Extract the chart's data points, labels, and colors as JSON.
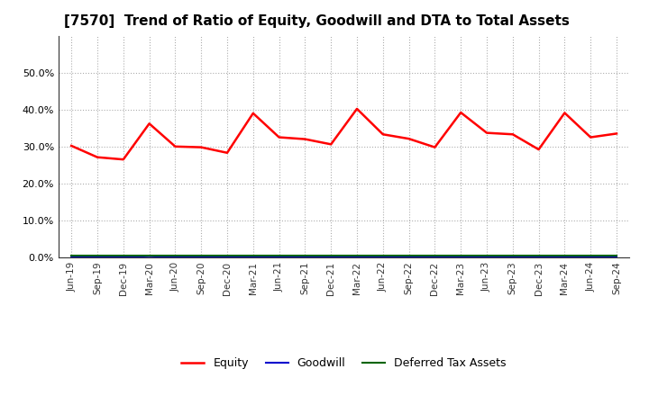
{
  "title": "[7570]  Trend of Ratio of Equity, Goodwill and DTA to Total Assets",
  "x_labels": [
    "Jun-19",
    "Sep-19",
    "Dec-19",
    "Mar-20",
    "Jun-20",
    "Sep-20",
    "Dec-20",
    "Mar-21",
    "Jun-21",
    "Sep-21",
    "Dec-21",
    "Mar-22",
    "Jun-22",
    "Sep-22",
    "Dec-22",
    "Mar-23",
    "Jun-23",
    "Sep-23",
    "Dec-23",
    "Mar-24",
    "Jun-24",
    "Sep-24"
  ],
  "equity": [
    0.302,
    0.271,
    0.265,
    0.362,
    0.3,
    0.298,
    0.283,
    0.39,
    0.325,
    0.32,
    0.306,
    0.402,
    0.333,
    0.321,
    0.298,
    0.392,
    0.337,
    0.333,
    0.292,
    0.391,
    0.325,
    0.335
  ],
  "goodwill": [
    0.001,
    0.001,
    0.001,
    0.003,
    0.001,
    0.001,
    0.001,
    0.001,
    0.001,
    0.001,
    0.001,
    0.001,
    0.001,
    0.001,
    0.001,
    0.001,
    0.001,
    0.001,
    0.001,
    0.001,
    0.001,
    0.001
  ],
  "dta": [
    0.004,
    0.004,
    0.004,
    0.004,
    0.004,
    0.004,
    0.004,
    0.004,
    0.004,
    0.004,
    0.004,
    0.004,
    0.004,
    0.004,
    0.004,
    0.004,
    0.004,
    0.004,
    0.004,
    0.004,
    0.004,
    0.004
  ],
  "equity_color": "#ff0000",
  "goodwill_color": "#0000cd",
  "dta_color": "#006400",
  "ylim": [
    0.0,
    0.6
  ],
  "yticks": [
    0.0,
    0.1,
    0.2,
    0.3,
    0.4,
    0.5
  ],
  "background_color": "#ffffff",
  "grid_color": "#999999",
  "title_fontsize": 11,
  "legend_labels": [
    "Equity",
    "Goodwill",
    "Deferred Tax Assets"
  ]
}
